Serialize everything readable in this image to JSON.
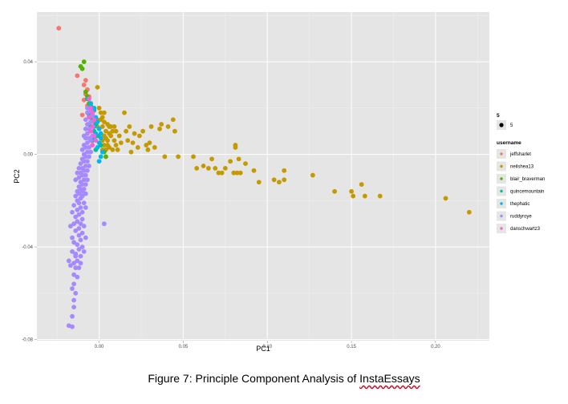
{
  "caption": {
    "prefix": "Figure 7: Principle Component Analysis of ",
    "emph": "InstaEssays"
  },
  "chart_data": {
    "type": "scatter",
    "xlabel": "PC1",
    "ylabel": "PC2",
    "xlim": [
      -0.037,
      0.232
    ],
    "ylim": [
      -0.0805,
      0.0615
    ],
    "xticks": [
      0.0,
      0.05,
      0.1,
      0.15,
      0.2
    ],
    "xtick_labels": [
      "0.00",
      "0.05",
      "0.10",
      "0.15",
      "0.20"
    ],
    "yticks": [
      -0.08,
      -0.04,
      0.0,
      0.04
    ],
    "ytick_labels": [
      "-0.08",
      "-0.04",
      "0.00",
      "0.04"
    ],
    "grid": true,
    "legend_position": "right",
    "size_legend": {
      "title": "5",
      "label": "5"
    },
    "color_legend_title": "username",
    "series": [
      {
        "name": "jeffsharlet",
        "color": "#F8766D",
        "points": [
          [
            -0.024,
            0.0545
          ],
          [
            -0.013,
            0.034
          ],
          [
            -0.008,
            0.032
          ],
          [
            -0.009,
            0.03
          ],
          [
            -0.007,
            0.028
          ],
          [
            -0.008,
            0.026
          ],
          [
            -0.006,
            0.025
          ],
          [
            -0.009,
            0.0235
          ],
          [
            -0.005,
            0.022
          ],
          [
            -0.007,
            0.021
          ],
          [
            -0.004,
            0.018
          ],
          [
            -0.01,
            0.017
          ],
          [
            -0.003,
            0.014
          ]
        ]
      },
      {
        "name": "neilshea13",
        "color": "#C49A00",
        "points": [
          [
            0.22,
            -0.025
          ],
          [
            0.206,
            -0.019
          ],
          [
            0.167,
            -0.018
          ],
          [
            0.158,
            -0.018
          ],
          [
            0.156,
            -0.013
          ],
          [
            0.151,
            -0.018
          ],
          [
            0.15,
            -0.016
          ],
          [
            0.14,
            -0.016
          ],
          [
            0.127,
            -0.009
          ],
          [
            0.11,
            -0.011
          ],
          [
            0.11,
            -0.007
          ],
          [
            0.107,
            -0.012
          ],
          [
            0.104,
            -0.011
          ],
          [
            0.095,
            -0.012
          ],
          [
            0.092,
            -0.007
          ],
          [
            0.087,
            -0.004
          ],
          [
            0.084,
            -0.008
          ],
          [
            0.083,
            -0.002
          ],
          [
            0.082,
            -0.008
          ],
          [
            0.081,
            0.003
          ],
          [
            0.08,
            -0.008
          ],
          [
            0.081,
            0.004
          ],
          [
            0.078,
            -0.003
          ],
          [
            0.075,
            -0.006
          ],
          [
            0.073,
            -0.008
          ],
          [
            0.071,
            -0.008
          ],
          [
            0.069,
            -0.006
          ],
          [
            0.067,
            -0.002
          ],
          [
            0.065,
            -0.006
          ],
          [
            0.062,
            -0.005
          ],
          [
            0.058,
            -0.006
          ],
          [
            0.056,
            -0.001
          ],
          [
            0.047,
            -0.001
          ],
          [
            0.045,
            0.01
          ],
          [
            0.044,
            0.015
          ],
          [
            0.041,
            0.012
          ],
          [
            0.039,
            -0.001
          ],
          [
            0.037,
            0.013
          ],
          [
            0.036,
            0.011
          ],
          [
            0.033,
            0.003
          ],
          [
            0.031,
            0.012
          ],
          [
            0.03,
            0.005
          ],
          [
            0.029,
            0.002
          ],
          [
            0.028,
            0.004
          ],
          [
            0.026,
            0.01
          ],
          [
            0.024,
            0.008
          ],
          [
            0.023,
            0.003
          ],
          [
            0.021,
            0.009
          ],
          [
            0.02,
            0.005
          ],
          [
            0.019,
            0.001
          ],
          [
            0.018,
            0.012
          ],
          [
            0.017,
            0.006
          ],
          [
            0.016,
            0.01
          ],
          [
            0.015,
            0.018
          ],
          [
            0.011,
            0.002
          ],
          [
            0.01,
            0.01
          ],
          [
            0.009,
            0.006
          ],
          [
            0.008,
            0.002
          ],
          [
            0.007,
            0.008
          ],
          [
            0.006,
            0.012
          ],
          [
            0.005,
            0.004
          ],
          [
            0.004,
            0.01
          ],
          [
            0.003,
            0.014
          ],
          [
            0.002,
            0.006
          ],
          [
            0.001,
            0.015
          ],
          [
            0.0,
            0.02
          ],
          [
            -0.001,
            0.029
          ],
          [
            0.001,
            0.018
          ],
          [
            0.002,
            0.012
          ],
          [
            0.003,
            0.008
          ],
          [
            0.004,
            0.002
          ],
          [
            0.005,
            0.006
          ],
          [
            -0.001,
            0.012
          ],
          [
            0.006,
            0.003
          ],
          [
            0.002,
            0.016
          ],
          [
            0.003,
            0.004
          ],
          [
            0.007,
            0.012
          ],
          [
            0.0,
            0.008
          ],
          [
            0.004,
            0.007
          ],
          [
            0.006,
            0.009
          ],
          [
            0.008,
            0.01
          ],
          [
            0.009,
            0.012
          ],
          [
            0.012,
            0.008
          ],
          [
            0.013,
            0.005
          ],
          [
            0.001,
            0.004
          ],
          [
            0.002,
            0.002
          ],
          [
            -0.001,
            0.015
          ],
          [
            0.003,
            0.018
          ],
          [
            0.005,
            0.013
          ],
          [
            0.01,
            0.004
          ]
        ]
      },
      {
        "name": "blair_braverman",
        "color": "#53B400",
        "points": [
          [
            -0.009,
            0.04
          ],
          [
            -0.011,
            0.038
          ],
          [
            -0.01,
            0.037
          ],
          [
            -0.008,
            0.027
          ],
          [
            -0.007,
            0.025
          ],
          [
            -0.006,
            0.022
          ],
          [
            0.003,
            0.001
          ],
          [
            0.004,
            -0.001
          ]
        ]
      },
      {
        "name": "quincemountain",
        "color": "#00C094",
        "points": [
          [
            -0.007,
            0.024
          ],
          [
            -0.005,
            0.021
          ],
          [
            -0.003,
            0.019
          ],
          [
            -0.006,
            0.017
          ],
          [
            -0.004,
            0.015
          ],
          [
            -0.002,
            0.013
          ],
          [
            -0.005,
            0.012
          ],
          [
            -0.003,
            0.01
          ],
          [
            -0.001,
            0.008
          ],
          [
            -0.004,
            0.006
          ],
          [
            0.001,
            0.004
          ],
          [
            -0.002,
            0.002
          ]
        ]
      },
      {
        "name": "thephatic",
        "color": "#00B6EB",
        "points": [
          [
            -0.005,
            0.022
          ],
          [
            -0.003,
            0.02
          ],
          [
            -0.004,
            0.018
          ],
          [
            -0.002,
            0.016
          ],
          [
            -0.001,
            0.014
          ],
          [
            -0.003,
            0.012
          ],
          [
            0.0,
            0.011
          ],
          [
            -0.002,
            0.009
          ],
          [
            0.001,
            0.007
          ],
          [
            0.0,
            0.005
          ],
          [
            -0.001,
            0.003
          ],
          [
            0.002,
            0.001
          ],
          [
            0.001,
            -0.001
          ],
          [
            0.0,
            -0.003
          ],
          [
            0.001,
            0.009
          ],
          [
            -0.003,
            0.007
          ]
        ]
      },
      {
        "name": "ruddyroye",
        "color": "#A58AFF",
        "points": [
          [
            -0.018,
            -0.074
          ],
          [
            -0.016,
            -0.0745
          ],
          [
            -0.016,
            -0.07
          ],
          [
            -0.015,
            -0.066
          ],
          [
            -0.015,
            -0.063
          ],
          [
            -0.014,
            -0.06
          ],
          [
            -0.016,
            -0.058
          ],
          [
            -0.015,
            -0.056
          ],
          [
            -0.013,
            -0.053
          ],
          [
            -0.015,
            -0.052
          ],
          [
            -0.014,
            -0.049
          ],
          [
            -0.012,
            -0.049
          ],
          [
            -0.015,
            -0.047
          ],
          [
            -0.013,
            -0.046
          ],
          [
            -0.011,
            -0.044
          ],
          [
            -0.014,
            -0.043
          ],
          [
            -0.012,
            -0.041
          ],
          [
            -0.01,
            -0.04
          ],
          [
            -0.013,
            -0.039
          ],
          [
            -0.011,
            -0.037
          ],
          [
            -0.016,
            -0.036
          ],
          [
            -0.012,
            -0.035
          ],
          [
            -0.01,
            -0.034
          ],
          [
            -0.014,
            -0.033
          ],
          [
            -0.012,
            -0.032
          ],
          [
            -0.015,
            -0.03
          ],
          [
            -0.011,
            -0.03
          ],
          [
            -0.013,
            -0.029
          ],
          [
            -0.01,
            -0.028
          ],
          [
            -0.014,
            -0.027
          ],
          [
            -0.012,
            -0.026
          ],
          [
            -0.016,
            -0.025
          ],
          [
            -0.01,
            -0.025
          ],
          [
            -0.013,
            -0.024
          ],
          [
            -0.011,
            -0.023
          ],
          [
            -0.015,
            -0.022
          ],
          [
            -0.012,
            -0.021
          ],
          [
            -0.009,
            -0.021
          ],
          [
            -0.013,
            -0.02
          ],
          [
            -0.011,
            -0.019
          ],
          [
            -0.014,
            -0.018
          ],
          [
            -0.01,
            -0.018
          ],
          [
            -0.012,
            -0.017
          ],
          [
            -0.008,
            -0.017
          ],
          [
            -0.013,
            -0.016
          ],
          [
            -0.011,
            -0.015
          ],
          [
            -0.009,
            -0.015
          ],
          [
            -0.012,
            -0.014
          ],
          [
            -0.01,
            -0.013
          ],
          [
            -0.008,
            -0.013
          ],
          [
            -0.011,
            -0.012
          ],
          [
            -0.009,
            -0.011
          ],
          [
            -0.007,
            -0.011
          ],
          [
            -0.012,
            -0.01
          ],
          [
            -0.01,
            -0.009
          ],
          [
            -0.008,
            -0.009
          ],
          [
            -0.011,
            -0.008
          ],
          [
            -0.009,
            -0.007
          ],
          [
            -0.007,
            -0.007
          ],
          [
            -0.01,
            -0.006
          ],
          [
            -0.008,
            -0.005
          ],
          [
            -0.006,
            -0.005
          ],
          [
            -0.011,
            -0.004
          ],
          [
            -0.009,
            -0.003
          ],
          [
            -0.007,
            -0.003
          ],
          [
            -0.01,
            -0.002
          ],
          [
            -0.008,
            -0.001
          ],
          [
            -0.006,
            -0.001
          ],
          [
            -0.009,
            0.0
          ],
          [
            -0.007,
            0.001
          ],
          [
            -0.005,
            0.001
          ],
          [
            -0.01,
            0.002
          ],
          [
            -0.008,
            0.003
          ],
          [
            -0.006,
            0.003
          ],
          [
            -0.004,
            0.004
          ],
          [
            -0.009,
            0.004
          ],
          [
            -0.007,
            0.005
          ],
          [
            -0.005,
            0.006
          ],
          [
            -0.008,
            0.007
          ],
          [
            -0.006,
            0.007
          ],
          [
            -0.004,
            0.008
          ],
          [
            -0.009,
            0.008
          ],
          [
            -0.007,
            0.009
          ],
          [
            -0.005,
            0.01
          ],
          [
            -0.008,
            0.011
          ],
          [
            -0.006,
            0.011
          ],
          [
            -0.004,
            0.012
          ],
          [
            -0.007,
            0.013
          ],
          [
            -0.005,
            0.014
          ],
          [
            -0.008,
            0.015
          ],
          [
            -0.006,
            0.016
          ],
          [
            -0.004,
            0.017
          ],
          [
            -0.007,
            0.018
          ],
          [
            -0.005,
            0.019
          ],
          [
            -0.007,
            0.02
          ],
          [
            -0.016,
            -0.042
          ],
          [
            -0.017,
            -0.048
          ],
          [
            -0.011,
            -0.047
          ],
          [
            -0.009,
            -0.042
          ],
          [
            -0.008,
            -0.036
          ],
          [
            -0.017,
            -0.031
          ],
          [
            -0.009,
            -0.031
          ],
          [
            -0.015,
            -0.038
          ],
          [
            -0.008,
            -0.023
          ],
          [
            -0.014,
            -0.011
          ],
          [
            -0.012,
            -0.006
          ],
          [
            -0.01,
            -0.016
          ],
          [
            -0.013,
            -0.008
          ],
          [
            -0.014,
            -0.044
          ],
          [
            -0.018,
            -0.046
          ],
          [
            0.003,
            -0.03
          ]
        ]
      },
      {
        "name": "danschwartz3",
        "color": "#FB61D7",
        "points": [
          [
            -0.006,
            0.024
          ],
          [
            -0.005,
            0.02
          ],
          [
            -0.004,
            0.018
          ],
          [
            -0.006,
            0.016
          ],
          [
            -0.003,
            0.015
          ],
          [
            -0.004,
            0.012
          ],
          [
            -0.005,
            0.01
          ],
          [
            -0.003,
            0.008
          ],
          [
            -0.002,
            0.006
          ],
          [
            -0.004,
            0.004
          ]
        ]
      }
    ]
  }
}
